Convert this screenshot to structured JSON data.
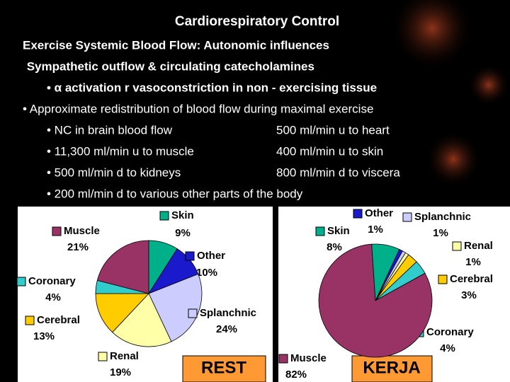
{
  "title": "Cardiorespiratory Control",
  "lines": [
    "Exercise Systemic Blood Flow:  Autonomic influences",
    " Sympathetic outflow & circulating catecholamines",
    "• α activation r vasoconstriction in non - exercising tissue",
    "•  Approximate redistribution of blood flow during maximal exercise"
  ],
  "rows": [
    [
      "• NC in brain blood flow",
      "500 ml/min u to heart"
    ],
    [
      "• 11,300 ml/min u to muscle",
      "400 ml/min u to skin"
    ],
    [
      "• 500 ml/min d to kidneys",
      "800 ml/min d to viscera"
    ],
    [
      "• 200 ml/min d to various other parts of the body"
    ]
  ],
  "chart_data": [
    {
      "type": "pie",
      "title": "REST",
      "categories": [
        "Skin",
        "Other",
        "Splanchnic",
        "Renal",
        "Cerebral",
        "Coronary",
        "Muscle"
      ],
      "values": [
        9,
        10,
        24,
        19,
        13,
        4,
        21
      ],
      "value_labels": [
        "9%",
        "10%",
        "24%",
        "19%",
        "13%",
        "4%",
        "21%"
      ],
      "colors": [
        "#00b08a",
        "#1a1acc",
        "#ccccff",
        "#ffffa8",
        "#ffcc00",
        "#33cccc",
        "#993366"
      ]
    },
    {
      "type": "pie",
      "title": "KERJA",
      "categories": [
        "Other",
        "Splanchnic",
        "Renal",
        "Cerebral",
        "Coronary",
        "Muscle",
        "Skin"
      ],
      "values": [
        1,
        1,
        1,
        3,
        4,
        82,
        8
      ],
      "value_labels": [
        "1%",
        "1%",
        "1%",
        "3%",
        "4%",
        "82%",
        "8%"
      ],
      "colors": [
        "#1a1acc",
        "#ccccff",
        "#ffffa8",
        "#ffcc00",
        "#33cccc",
        "#993366",
        "#00b08a"
      ]
    }
  ]
}
